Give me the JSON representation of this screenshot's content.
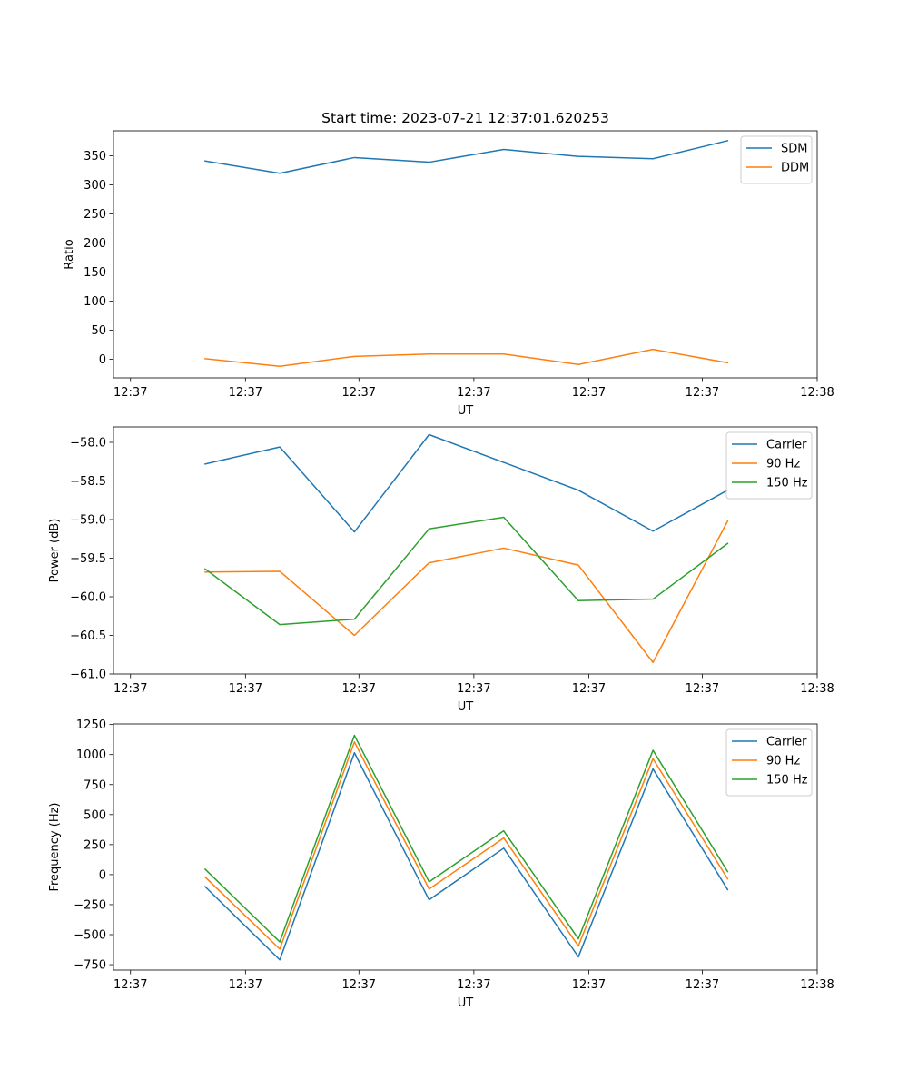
{
  "title": "Start time: 2023-07-21 12:37:01.620253",
  "colors": {
    "blue": "#1f77b4",
    "orange": "#ff7f0e",
    "green": "#2ca02c"
  },
  "chart_data": [
    {
      "type": "line",
      "title": "Start time: 2023-07-21 12:37:01.620253",
      "xlabel": "UT",
      "ylabel": "Ratio",
      "x": [
        0.5,
        1.0,
        1.5,
        2.0,
        2.5,
        3.0,
        3.5,
        4.0
      ],
      "xlim": [
        -0.114,
        4.6
      ],
      "xticks": [
        0,
        0.77,
        1.53,
        2.3,
        3.07,
        3.83,
        4.6
      ],
      "xtick_labels": [
        "12:37",
        "12:37",
        "12:37",
        "12:37",
        "12:37",
        "12:37",
        "12:38"
      ],
      "ylim": [
        -32,
        393
      ],
      "yticks": [
        0,
        50,
        100,
        150,
        200,
        250,
        300,
        350
      ],
      "ytick_labels": [
        "0",
        "50",
        "100",
        "150",
        "200",
        "250",
        "300",
        "350"
      ],
      "legend_location": "top-right",
      "series": [
        {
          "name": "SDM",
          "color": "#1f77b4",
          "values": [
            341,
            320,
            347,
            339,
            361,
            349,
            345,
            376
          ]
        },
        {
          "name": "DDM",
          "color": "#ff7f0e",
          "values": [
            1,
            -12,
            5,
            9,
            9,
            -9,
            17,
            -6
          ]
        }
      ]
    },
    {
      "type": "line",
      "title": "",
      "xlabel": "UT",
      "ylabel": "Power (dB)",
      "x": [
        0.5,
        1.0,
        1.5,
        2.0,
        2.5,
        3.0,
        3.5,
        4.0
      ],
      "xlim": [
        -0.114,
        4.6
      ],
      "xticks": [
        0,
        0.77,
        1.53,
        2.3,
        3.07,
        3.83,
        4.6
      ],
      "xtick_labels": [
        "12:37",
        "12:37",
        "12:37",
        "12:37",
        "12:37",
        "12:37",
        "12:38"
      ],
      "ylim": [
        -61.0,
        -57.8
      ],
      "yticks": [
        -61.0,
        -60.5,
        -60.0,
        -59.5,
        -59.0,
        -58.5,
        -58.0
      ],
      "ytick_labels": [
        "−61.0",
        "−60.5",
        "−60.0",
        "−59.5",
        "−59.0",
        "−58.5",
        "−58.0"
      ],
      "legend_location": "top-right",
      "series": [
        {
          "name": "Carrier",
          "color": "#1f77b4",
          "values": [
            -58.28,
            -58.06,
            -59.16,
            -57.9,
            -58.26,
            -58.62,
            -59.15,
            -58.62
          ]
        },
        {
          "name": "90 Hz",
          "color": "#ff7f0e",
          "values": [
            -59.68,
            -59.67,
            -60.5,
            -59.56,
            -59.37,
            -59.59,
            -60.85,
            -59.02
          ]
        },
        {
          "name": "150 Hz",
          "color": "#2ca02c",
          "values": [
            -59.64,
            -60.36,
            -60.29,
            -59.12,
            -58.97,
            -60.05,
            -60.03,
            -59.31
          ]
        }
      ]
    },
    {
      "type": "line",
      "title": "",
      "xlabel": "UT",
      "ylabel": "Frequency (Hz)",
      "x": [
        0.5,
        1.0,
        1.5,
        2.0,
        2.5,
        3.0,
        3.5,
        4.0
      ],
      "xlim": [
        -0.114,
        4.6
      ],
      "xticks": [
        0,
        0.77,
        1.53,
        2.3,
        3.07,
        3.83,
        4.6
      ],
      "xtick_labels": [
        "12:37",
        "12:37",
        "12:37",
        "12:37",
        "12:37",
        "12:37",
        "12:38"
      ],
      "ylim": [
        -795,
        1255
      ],
      "yticks": [
        -750,
        -500,
        -250,
        0,
        250,
        500,
        750,
        1000,
        1250
      ],
      "ytick_labels": [
        "−750",
        "−500",
        "−250",
        "0",
        "250",
        "500",
        "750",
        "1000",
        "1250"
      ],
      "legend_location": "top-right",
      "series": [
        {
          "name": "Carrier",
          "color": "#1f77b4",
          "values": [
            -100,
            -710,
            1015,
            -210,
            220,
            -685,
            880,
            -125
          ]
        },
        {
          "name": "90 Hz",
          "color": "#ff7f0e",
          "values": [
            -20,
            -620,
            1105,
            -120,
            305,
            -595,
            965,
            -35
          ]
        },
        {
          "name": "150 Hz",
          "color": "#2ca02c",
          "values": [
            45,
            -560,
            1160,
            -60,
            365,
            -535,
            1035,
            25
          ]
        }
      ]
    }
  ]
}
